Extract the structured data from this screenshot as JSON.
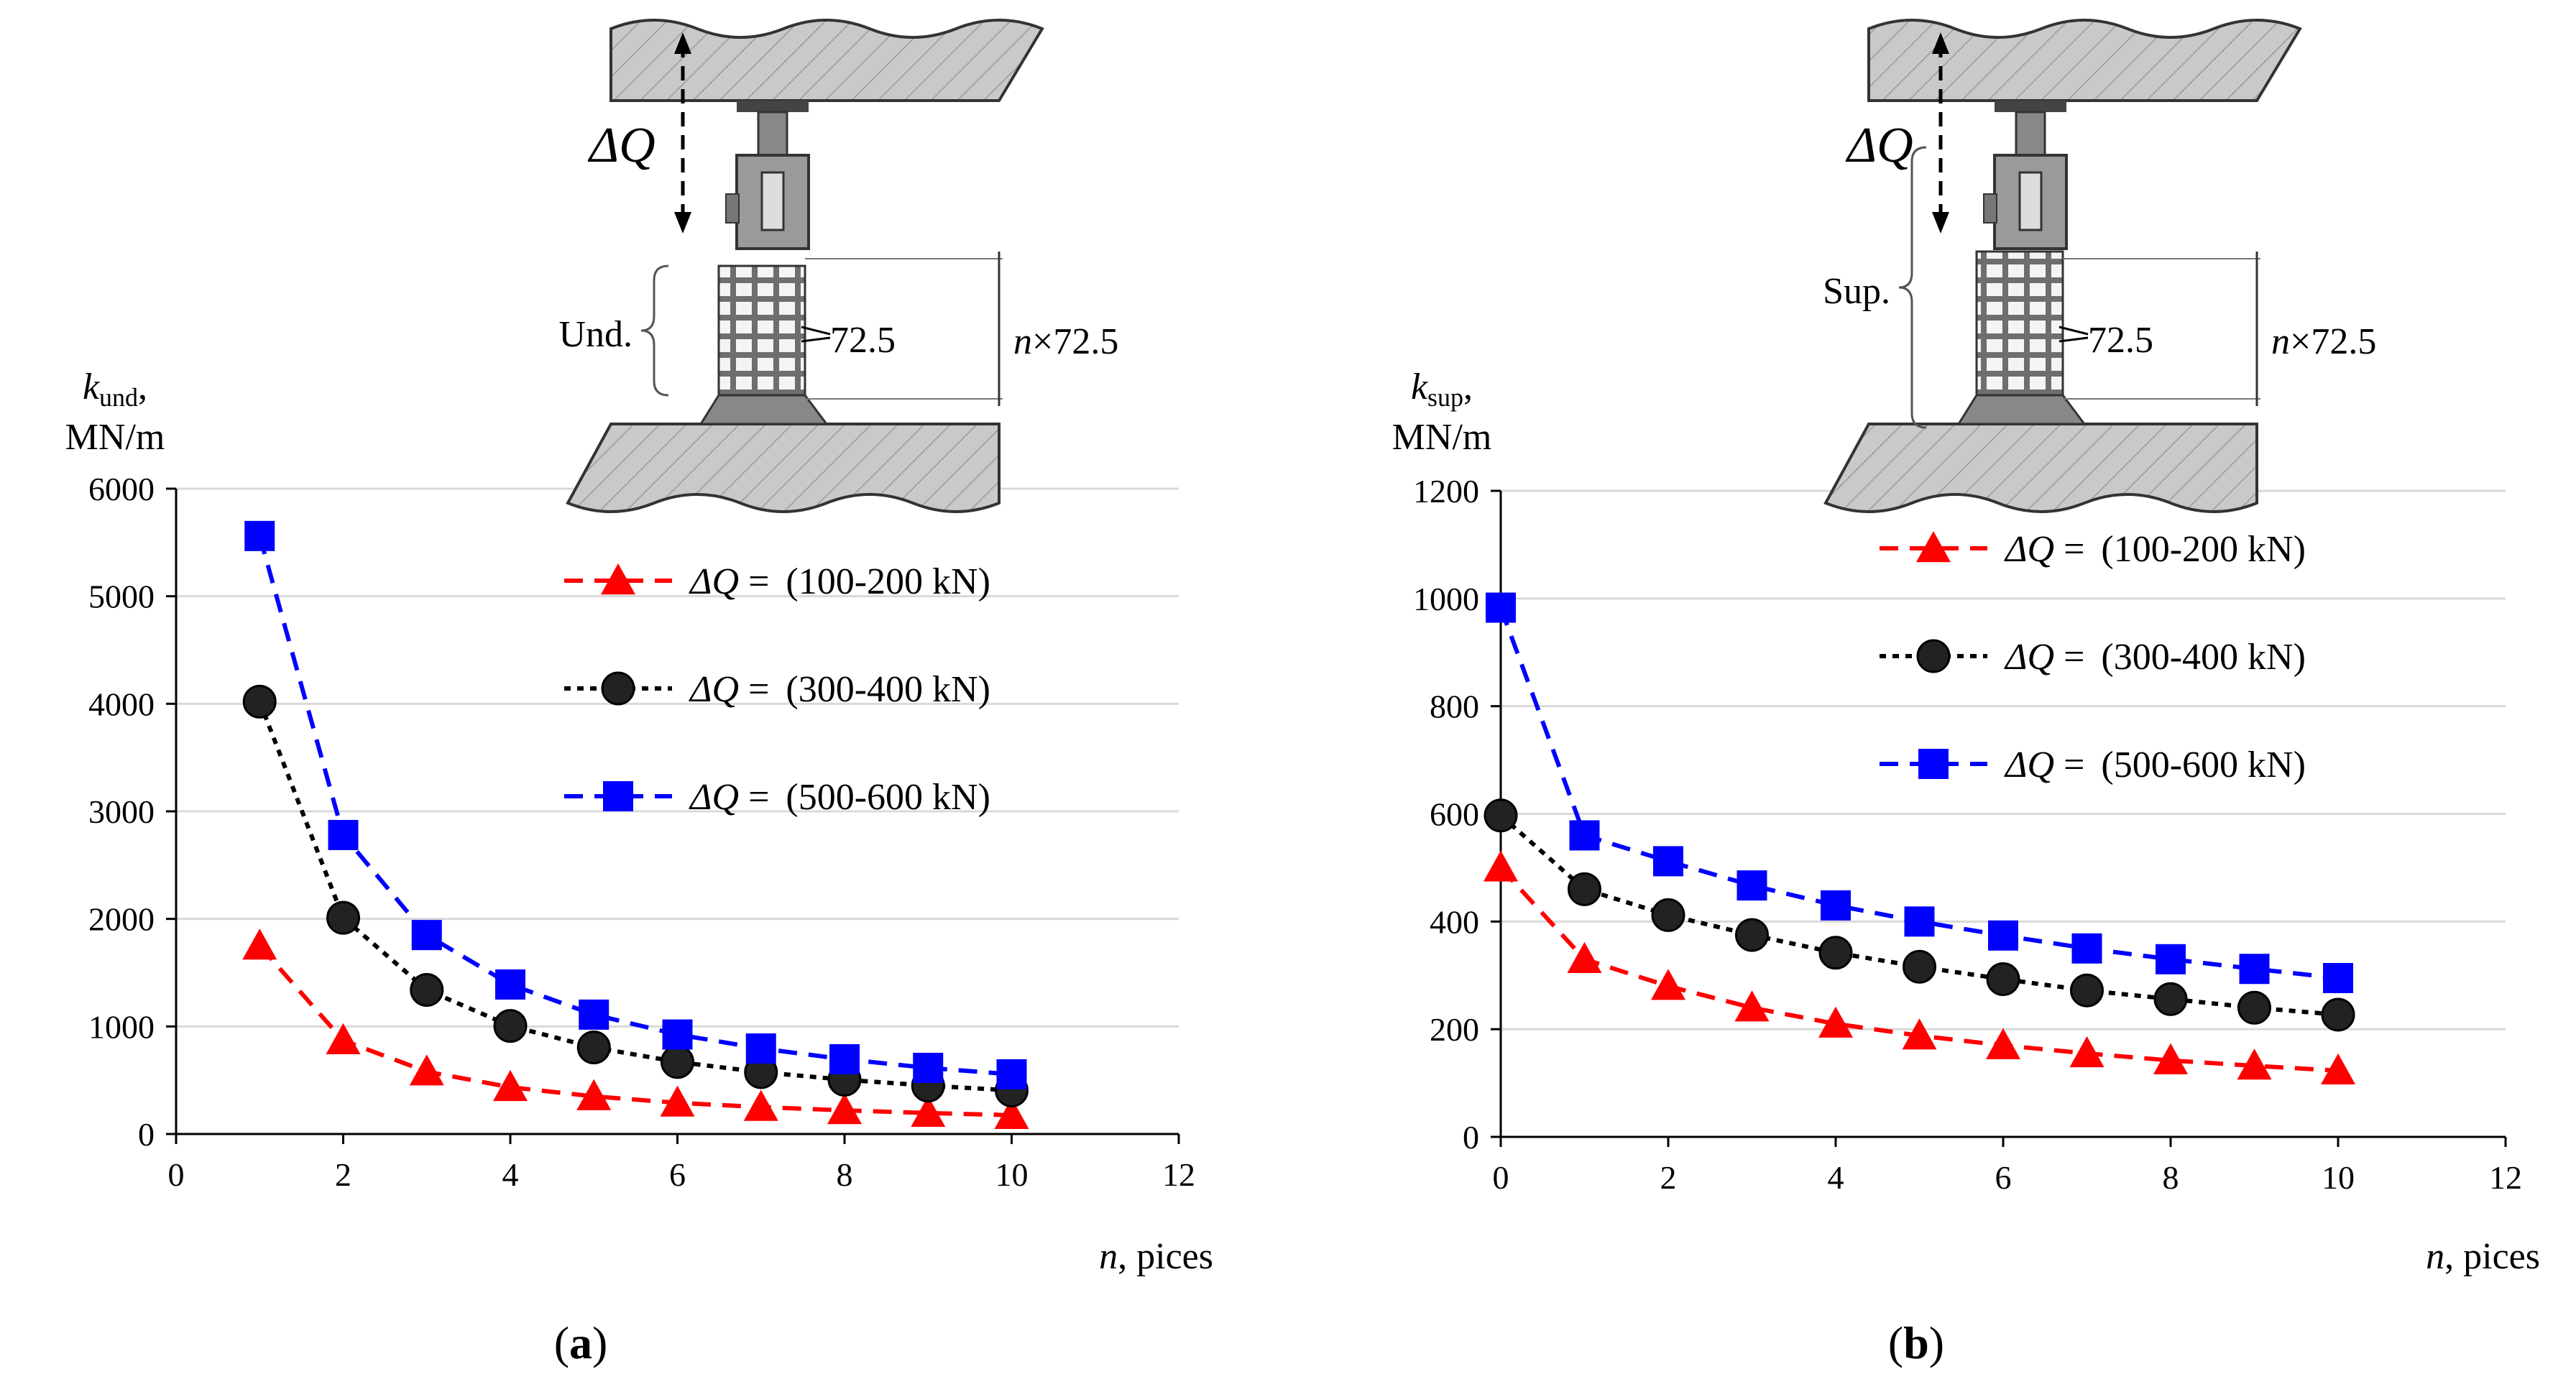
{
  "chart_data": [
    {
      "type": "scatter",
      "panel_label": "a",
      "ylabel_symbol": "k",
      "ylabel_sub": "und",
      "ylabel_comma": ",",
      "ylabel_units": "MN/m",
      "xlabel_var": "n",
      "xlabel_rest": ", pices",
      "xlim": [
        0,
        12
      ],
      "ylim": [
        0,
        6000
      ],
      "xticks": [
        0,
        2,
        4,
        6,
        8,
        10,
        12
      ],
      "yticks": [
        0,
        1000,
        2000,
        3000,
        4000,
        5000,
        6000
      ],
      "grid": true,
      "legend_position": "top-right",
      "series": [
        {
          "legend_var": "ΔQ",
          "legend_eq": " = ",
          "legend_range": "(100-200 kN)",
          "color": "#ff0000",
          "marker": "triangle",
          "x": [
            1,
            2,
            3,
            4,
            5,
            6,
            7,
            8,
            9,
            10
          ],
          "y": [
            1750,
            870,
            580,
            435,
            350,
            290,
            250,
            220,
            195,
            175
          ]
        },
        {
          "legend_var": "ΔQ",
          "legend_eq": " = ",
          "legend_range": "(300-400 kN)",
          "color": "#000000",
          "marker": "circle",
          "x": [
            1,
            2,
            3,
            4,
            5,
            6,
            7,
            8,
            9,
            10
          ],
          "y": [
            4020,
            2010,
            1340,
            1005,
            805,
            670,
            575,
            505,
            450,
            405
          ]
        },
        {
          "legend_var": "ΔQ",
          "legend_eq": " = ",
          "legend_range": "(500-600 kN)",
          "color": "#0000ff",
          "marker": "square",
          "x": [
            1,
            2,
            3,
            4,
            5,
            6,
            7,
            8,
            9,
            10
          ],
          "y": [
            5560,
            2780,
            1850,
            1390,
            1110,
            925,
            795,
            695,
            615,
            555
          ]
        }
      ],
      "inset": {
        "dq_var": "ΔQ",
        "side_label": "Und.",
        "block_label": "72.5",
        "height_var": "n",
        "height_rest": "×72.5"
      }
    },
    {
      "type": "scatter",
      "panel_label": "b",
      "ylabel_symbol": "k",
      "ylabel_sub": "sup",
      "ylabel_comma": ",",
      "ylabel_units": "MN/m",
      "xlabel_var": "n",
      "xlabel_rest": ", pices",
      "xlim": [
        0,
        12
      ],
      "ylim": [
        0,
        1200
      ],
      "xticks": [
        0,
        2,
        4,
        6,
        8,
        10,
        12
      ],
      "yticks": [
        0,
        200,
        400,
        600,
        800,
        1000,
        1200
      ],
      "grid": true,
      "legend_position": "top-right",
      "series": [
        {
          "legend_var": "ΔQ",
          "legend_eq": " = ",
          "legend_range": "(100-200 kN)",
          "color": "#ff0000",
          "marker": "triangle",
          "x": [
            0,
            1,
            2,
            3,
            4,
            5,
            6,
            7,
            8,
            9,
            10
          ],
          "y": [
            500,
            330,
            280,
            240,
            210,
            188,
            170,
            155,
            142,
            132,
            123
          ]
        },
        {
          "legend_var": "ΔQ",
          "legend_eq": " = ",
          "legend_range": "(300-400 kN)",
          "color": "#000000",
          "marker": "circle",
          "x": [
            0,
            1,
            2,
            3,
            4,
            5,
            6,
            7,
            8,
            9,
            10
          ],
          "y": [
            597,
            460,
            412,
            375,
            342,
            316,
            293,
            272,
            256,
            240,
            227
          ]
        },
        {
          "legend_var": "ΔQ",
          "legend_eq": " = ",
          "legend_range": "(500-600 kN)",
          "color": "#0000ff",
          "marker": "square",
          "x": [
            0,
            1,
            2,
            3,
            4,
            5,
            6,
            7,
            8,
            9,
            10
          ],
          "y": [
            983,
            560,
            512,
            467,
            430,
            400,
            374,
            350,
            330,
            312,
            295
          ]
        }
      ],
      "inset": {
        "dq_var": "ΔQ",
        "side_label": "Sup.",
        "block_label": "72.5",
        "height_var": "n",
        "height_rest": "×72.5"
      }
    }
  ]
}
